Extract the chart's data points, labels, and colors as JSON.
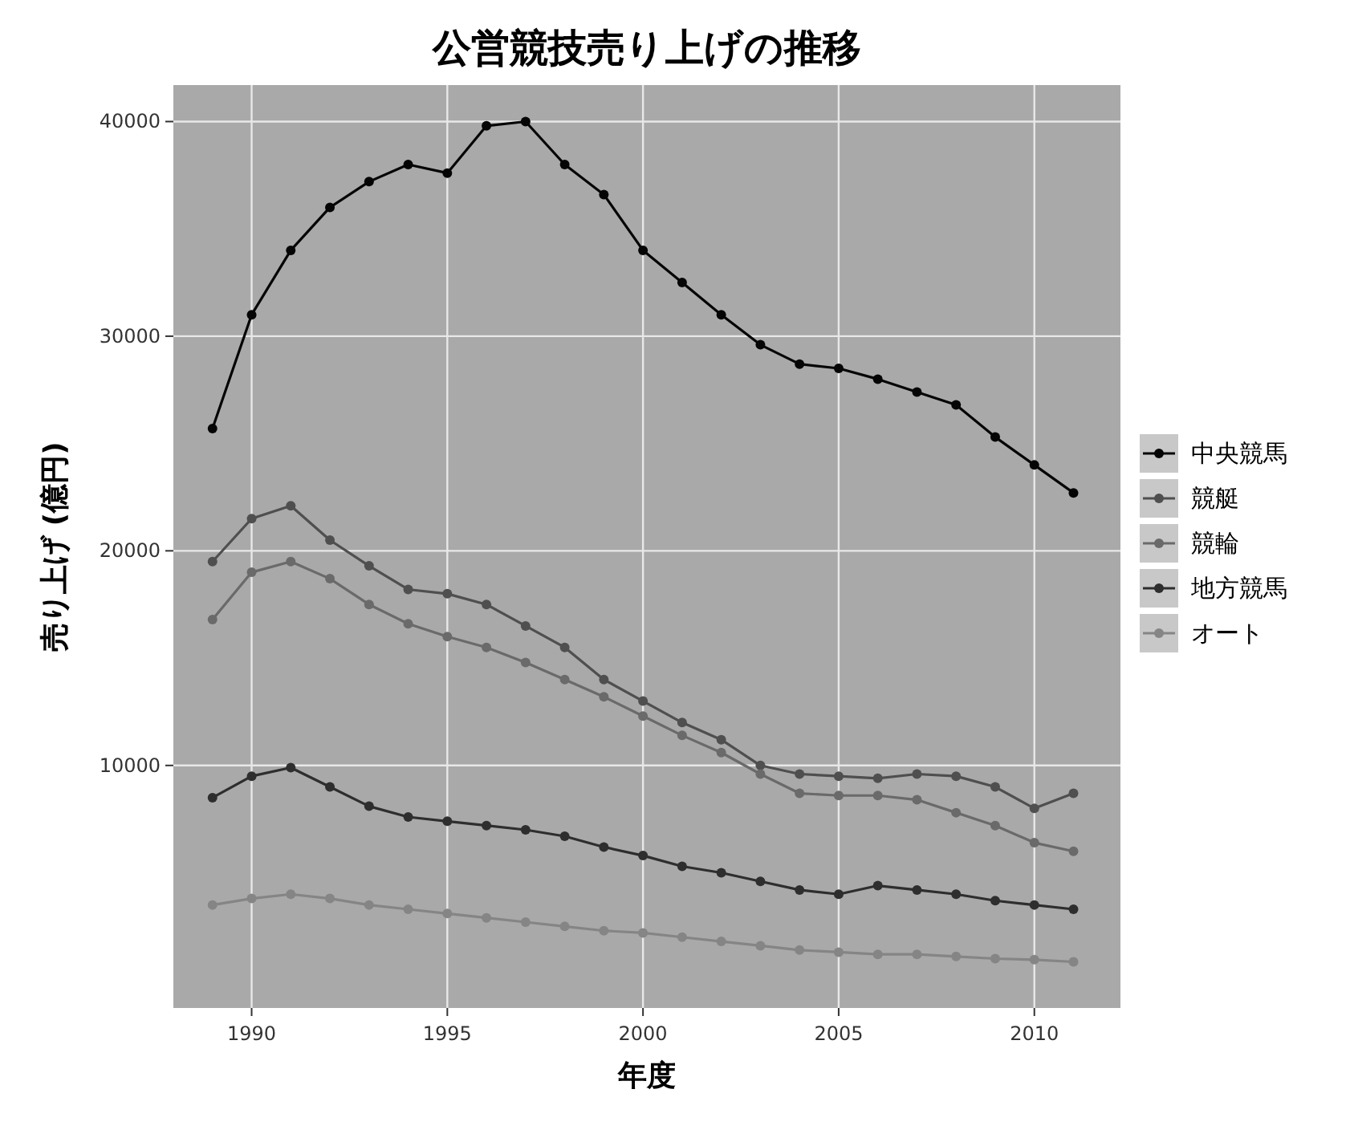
{
  "chart_data": {
    "type": "line",
    "title": "公営競技売り上げの推移",
    "xlabel": "年度",
    "ylabel": "売り上げ (億円)",
    "x": [
      1989,
      1990,
      1991,
      1992,
      1993,
      1994,
      1995,
      1996,
      1997,
      1998,
      1999,
      2000,
      2001,
      2002,
      2003,
      2004,
      2005,
      2006,
      2007,
      2008,
      2009,
      2010,
      2011
    ],
    "series": [
      {
        "name": "中央競馬",
        "color": "#050505",
        "values": [
          25700,
          31000,
          34000,
          36000,
          37200,
          38000,
          37600,
          39800,
          40000,
          38000,
          36600,
          34000,
          32500,
          31000,
          29600,
          28700,
          28500,
          28000,
          27400,
          26800,
          25300,
          24000,
          22700
        ]
      },
      {
        "name": "競艇",
        "color": "#4f4f4f",
        "values": [
          19500,
          21500,
          22100,
          20500,
          19300,
          18200,
          18000,
          17500,
          16500,
          15500,
          14000,
          13000,
          12000,
          11200,
          10000,
          9600,
          9500,
          9400,
          9600,
          9500,
          9000,
          8000,
          8700
        ]
      },
      {
        "name": "競輪",
        "color": "#6a6a6a",
        "values": [
          16800,
          19000,
          19500,
          18700,
          17500,
          16600,
          16000,
          15500,
          14800,
          14000,
          13200,
          12300,
          11400,
          10600,
          9600,
          8700,
          8600,
          8600,
          8400,
          7800,
          7200,
          6400,
          6000
        ]
      },
      {
        "name": "地方競馬",
        "color": "#2e2e2e",
        "values": [
          8500,
          9500,
          9900,
          9000,
          8100,
          7600,
          7400,
          7200,
          7000,
          6700,
          6200,
          5800,
          5300,
          5000,
          4600,
          4200,
          4000,
          4400,
          4200,
          4000,
          3700,
          3500,
          3300
        ]
      },
      {
        "name": "オート",
        "color": "#858585",
        "values": [
          3500,
          3800,
          4000,
          3800,
          3500,
          3300,
          3100,
          2900,
          2700,
          2500,
          2300,
          2200,
          2000,
          1800,
          1600,
          1400,
          1300,
          1200,
          1200,
          1100,
          1000,
          950,
          850
        ]
      }
    ],
    "xlim": [
      1988,
      2012.2
    ],
    "ylim": [
      -1300,
      41700
    ],
    "xticks": [
      1990,
      1995,
      2000,
      2005,
      2010
    ],
    "yticks": [
      10000,
      20000,
      30000,
      40000
    ],
    "grid": true,
    "legend": "right",
    "marker": "circle",
    "line_style": "solid"
  }
}
